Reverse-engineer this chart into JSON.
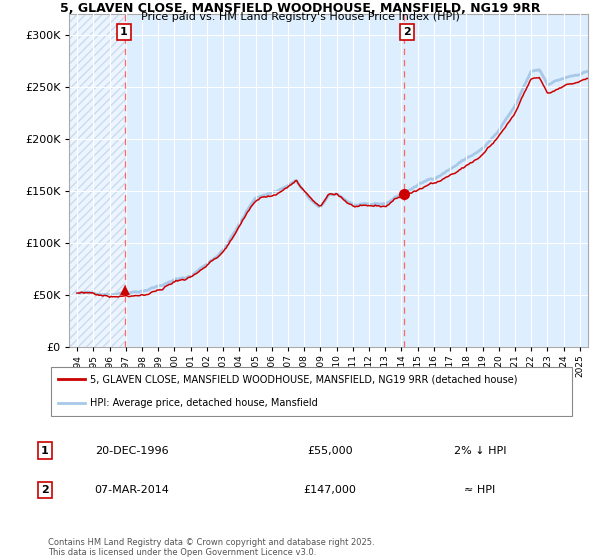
{
  "title_line1": "5, GLAVEN CLOSE, MANSFIELD WOODHOUSE, MANSFIELD, NG19 9RR",
  "title_line2": "Price paid vs. HM Land Registry's House Price Index (HPI)",
  "legend_line1": "5, GLAVEN CLOSE, MANSFIELD WOODHOUSE, MANSFIELD, NG19 9RR (detached house)",
  "legend_line2": "HPI: Average price, detached house, Mansfield",
  "annotation1_label": "1",
  "annotation1_date": "20-DEC-1996",
  "annotation1_price": "£55,000",
  "annotation1_hpi": "2% ↓ HPI",
  "annotation2_label": "2",
  "annotation2_date": "07-MAR-2014",
  "annotation2_price": "£147,000",
  "annotation2_hpi": "≈ HPI",
  "footer": "Contains HM Land Registry data © Crown copyright and database right 2025.\nThis data is licensed under the Open Government Licence v3.0.",
  "purchase1_year": 1996.97,
  "purchase1_price": 55000,
  "purchase2_year": 2014.18,
  "purchase2_price": 147000,
  "hpi_color": "#a8c8e8",
  "price_color": "#cc0000",
  "vline_color": "#ff6666",
  "bg_plot_color": "#ddeeff",
  "ylim": [
    0,
    320000
  ],
  "xlim_start": 1993.5,
  "xlim_end": 2025.5,
  "yticks": [
    0,
    50000,
    100000,
    150000,
    200000,
    250000,
    300000
  ],
  "ytick_labels": [
    "£0",
    "£50K",
    "£100K",
    "£150K",
    "£200K",
    "£250K",
    "£300K"
  ]
}
